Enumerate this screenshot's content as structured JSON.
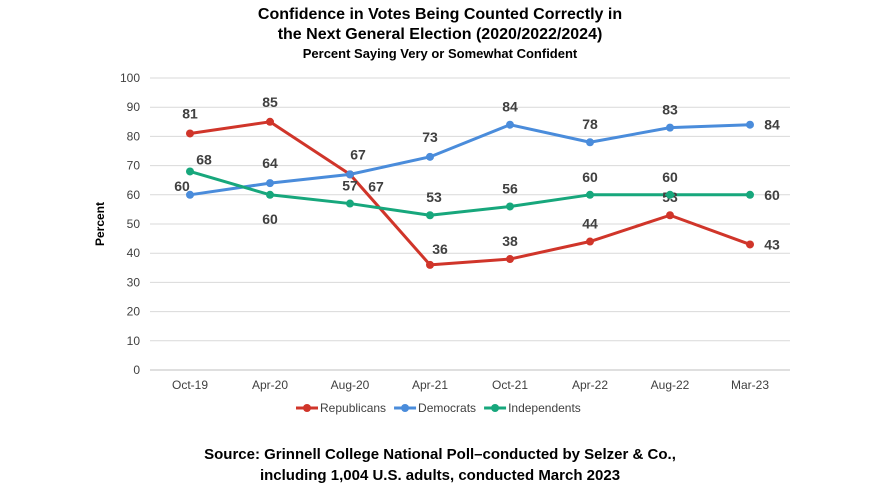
{
  "chart_data": {
    "type": "line",
    "title_line1": "Confidence in Votes Being Counted Correctly in",
    "title_line2": "the Next General Election (2020/2022/2024)",
    "subtitle": "Percent Saying Very or Somewhat Confident",
    "ylabel": "Percent",
    "xlabel": "",
    "ylim": [
      0,
      100
    ],
    "yticks": [
      0,
      10,
      20,
      30,
      40,
      50,
      60,
      70,
      80,
      90,
      100
    ],
    "grid": true,
    "legend_placement": "bottom",
    "categories": [
      "Oct-19",
      "Apr-20",
      "Aug-20",
      "Apr-21",
      "Oct-21",
      "Apr-22",
      "Aug-22",
      "Mar-23"
    ],
    "series": [
      {
        "name": "Republicans",
        "color": "#d0352a",
        "values": [
          81,
          85,
          67,
          36,
          38,
          44,
          53,
          43
        ]
      },
      {
        "name": "Democrats",
        "color": "#4a8cdb",
        "values": [
          60,
          64,
          67,
          73,
          84,
          78,
          83,
          84
        ]
      },
      {
        "name": "Independents",
        "color": "#17a77c",
        "values": [
          68,
          60,
          57,
          53,
          56,
          60,
          60,
          60
        ]
      }
    ]
  },
  "source_line1": "Source:  Grinnell College National Poll–conducted by Selzer & Co.,",
  "source_line2": "including 1,004 U.S. adults, conducted March 2023"
}
